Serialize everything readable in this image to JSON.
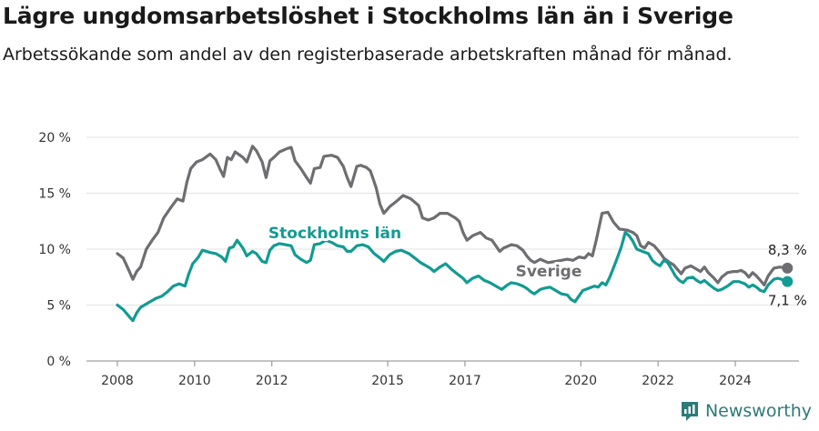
{
  "header": {
    "title": "Lägre ungdomsarbetslöshet i Stockholms län än i Sverige",
    "subtitle": "Arbetssökande som andel av den registerbaserade arbetskraften månad för månad."
  },
  "brand": {
    "name": "Newsworthy",
    "icon": "newsworthy-logo-icon",
    "color": "#2d7a78"
  },
  "chart_data": {
    "type": "line",
    "ylim": [
      0,
      20
    ],
    "yticks": [
      0,
      5,
      10,
      15,
      20
    ],
    "ytick_labels": [
      "0 %",
      "5 %",
      "10 %",
      "15 %",
      "20 %"
    ],
    "xticks": [
      2008,
      2010,
      2012,
      2015,
      2017,
      2020,
      2022,
      2024
    ],
    "xtick_labels": [
      "2008",
      "2010",
      "2012",
      "2015",
      "2017",
      "2020",
      "2022",
      "2024"
    ],
    "grid": true,
    "series": [
      {
        "name": "Sverige",
        "color": "#6e6e72",
        "end_label": "8,3 %",
        "points": [
          [
            2008.0,
            9.6
          ],
          [
            2008.15,
            9.2
          ],
          [
            2008.3,
            8.1
          ],
          [
            2008.4,
            7.3
          ],
          [
            2008.5,
            8.0
          ],
          [
            2008.6,
            8.4
          ],
          [
            2008.75,
            10.0
          ],
          [
            2008.9,
            10.8
          ],
          [
            2009.05,
            11.5
          ],
          [
            2009.2,
            12.8
          ],
          [
            2009.4,
            13.8
          ],
          [
            2009.55,
            14.5
          ],
          [
            2009.7,
            14.3
          ],
          [
            2009.8,
            16.0
          ],
          [
            2009.9,
            17.2
          ],
          [
            2010.05,
            17.8
          ],
          [
            2010.2,
            18.0
          ],
          [
            2010.4,
            18.5
          ],
          [
            2010.55,
            18.0
          ],
          [
            2010.65,
            17.2
          ],
          [
            2010.75,
            16.5
          ],
          [
            2010.85,
            18.2
          ],
          [
            2010.95,
            18.0
          ],
          [
            2011.05,
            18.7
          ],
          [
            2011.25,
            18.2
          ],
          [
            2011.35,
            17.8
          ],
          [
            2011.5,
            19.2
          ],
          [
            2011.6,
            18.8
          ],
          [
            2011.75,
            17.8
          ],
          [
            2011.85,
            16.4
          ],
          [
            2011.95,
            17.9
          ],
          [
            2012.05,
            18.2
          ],
          [
            2012.2,
            18.7
          ],
          [
            2012.4,
            19.0
          ],
          [
            2012.5,
            19.1
          ],
          [
            2012.6,
            17.9
          ],
          [
            2012.75,
            17.2
          ],
          [
            2012.9,
            16.4
          ],
          [
            2013.0,
            15.9
          ],
          [
            2013.1,
            17.2
          ],
          [
            2013.25,
            17.3
          ],
          [
            2013.35,
            18.3
          ],
          [
            2013.55,
            18.4
          ],
          [
            2013.7,
            18.2
          ],
          [
            2013.85,
            17.4
          ],
          [
            2013.95,
            16.4
          ],
          [
            2014.05,
            15.6
          ],
          [
            2014.2,
            17.4
          ],
          [
            2014.3,
            17.5
          ],
          [
            2014.45,
            17.3
          ],
          [
            2014.55,
            17.0
          ],
          [
            2014.7,
            15.5
          ],
          [
            2014.8,
            14.0
          ],
          [
            2014.9,
            13.2
          ],
          [
            2015.05,
            13.8
          ],
          [
            2015.2,
            14.2
          ],
          [
            2015.4,
            14.8
          ],
          [
            2015.6,
            14.5
          ],
          [
            2015.8,
            13.9
          ],
          [
            2015.9,
            12.8
          ],
          [
            2016.05,
            12.6
          ],
          [
            2016.2,
            12.8
          ],
          [
            2016.35,
            13.2
          ],
          [
            2016.55,
            13.2
          ],
          [
            2016.75,
            12.8
          ],
          [
            2016.85,
            12.5
          ],
          [
            2016.95,
            11.5
          ],
          [
            2017.05,
            10.8
          ],
          [
            2017.2,
            11.2
          ],
          [
            2017.4,
            11.5
          ],
          [
            2017.55,
            11.0
          ],
          [
            2017.7,
            10.8
          ],
          [
            2017.8,
            10.3
          ],
          [
            2017.9,
            9.8
          ],
          [
            2018.0,
            10.1
          ],
          [
            2018.2,
            10.4
          ],
          [
            2018.35,
            10.3
          ],
          [
            2018.5,
            9.9
          ],
          [
            2018.6,
            9.4
          ],
          [
            2018.7,
            9.0
          ],
          [
            2018.8,
            8.8
          ],
          [
            2018.95,
            9.1
          ],
          [
            2019.15,
            8.8
          ],
          [
            2019.35,
            8.9
          ],
          [
            2019.5,
            9.0
          ],
          [
            2019.65,
            9.1
          ],
          [
            2019.8,
            9.0
          ],
          [
            2019.95,
            9.3
          ],
          [
            2020.1,
            9.2
          ],
          [
            2020.2,
            9.6
          ],
          [
            2020.3,
            9.4
          ],
          [
            2020.4,
            10.8
          ],
          [
            2020.55,
            13.2
          ],
          [
            2020.7,
            13.3
          ],
          [
            2020.85,
            12.4
          ],
          [
            2021.0,
            11.8
          ],
          [
            2021.2,
            11.7
          ],
          [
            2021.35,
            11.5
          ],
          [
            2021.45,
            11.2
          ],
          [
            2021.55,
            10.3
          ],
          [
            2021.65,
            10.1
          ],
          [
            2021.75,
            10.6
          ],
          [
            2021.9,
            10.3
          ],
          [
            2022.05,
            9.7
          ],
          [
            2022.15,
            9.2
          ],
          [
            2022.3,
            8.8
          ],
          [
            2022.4,
            8.6
          ],
          [
            2022.5,
            8.2
          ],
          [
            2022.6,
            7.8
          ],
          [
            2022.7,
            8.3
          ],
          [
            2022.85,
            8.5
          ],
          [
            2023.0,
            8.2
          ],
          [
            2023.1,
            8.0
          ],
          [
            2023.2,
            8.4
          ],
          [
            2023.3,
            7.9
          ],
          [
            2023.45,
            7.4
          ],
          [
            2023.55,
            7.0
          ],
          [
            2023.65,
            7.5
          ],
          [
            2023.8,
            7.9
          ],
          [
            2023.95,
            8.0
          ],
          [
            2024.05,
            8.0
          ],
          [
            2024.15,
            8.1
          ],
          [
            2024.25,
            7.9
          ],
          [
            2024.35,
            7.5
          ],
          [
            2024.45,
            7.9
          ],
          [
            2024.55,
            7.6
          ],
          [
            2024.65,
            7.2
          ],
          [
            2024.75,
            6.8
          ],
          [
            2024.85,
            7.6
          ],
          [
            2025.0,
            8.3
          ],
          [
            2025.15,
            8.4
          ],
          [
            2025.35,
            8.3
          ]
        ]
      },
      {
        "name": "Stockholms län",
        "color": "#129b92",
        "end_label": "7,1 %",
        "points": [
          [
            2008.0,
            5.0
          ],
          [
            2008.15,
            4.6
          ],
          [
            2008.3,
            4.0
          ],
          [
            2008.4,
            3.6
          ],
          [
            2008.5,
            4.3
          ],
          [
            2008.6,
            4.8
          ],
          [
            2008.8,
            5.2
          ],
          [
            2009.0,
            5.6
          ],
          [
            2009.15,
            5.8
          ],
          [
            2009.3,
            6.2
          ],
          [
            2009.45,
            6.7
          ],
          [
            2009.6,
            6.9
          ],
          [
            2009.75,
            6.7
          ],
          [
            2009.85,
            7.8
          ],
          [
            2009.95,
            8.7
          ],
          [
            2010.1,
            9.3
          ],
          [
            2010.2,
            9.9
          ],
          [
            2010.4,
            9.7
          ],
          [
            2010.55,
            9.6
          ],
          [
            2010.7,
            9.3
          ],
          [
            2010.8,
            8.9
          ],
          [
            2010.9,
            10.1
          ],
          [
            2011.0,
            10.2
          ],
          [
            2011.1,
            10.8
          ],
          [
            2011.25,
            10.1
          ],
          [
            2011.35,
            9.4
          ],
          [
            2011.5,
            9.8
          ],
          [
            2011.6,
            9.6
          ],
          [
            2011.75,
            8.9
          ],
          [
            2011.85,
            8.8
          ],
          [
            2011.95,
            9.9
          ],
          [
            2012.05,
            10.3
          ],
          [
            2012.2,
            10.5
          ],
          [
            2012.35,
            10.4
          ],
          [
            2012.5,
            10.3
          ],
          [
            2012.6,
            9.5
          ],
          [
            2012.75,
            9.1
          ],
          [
            2012.9,
            8.8
          ],
          [
            2013.0,
            9.0
          ],
          [
            2013.1,
            10.4
          ],
          [
            2013.25,
            10.5
          ],
          [
            2013.4,
            10.8
          ],
          [
            2013.55,
            10.6
          ],
          [
            2013.7,
            10.3
          ],
          [
            2013.85,
            10.2
          ],
          [
            2013.95,
            9.8
          ],
          [
            2014.05,
            9.8
          ],
          [
            2014.2,
            10.3
          ],
          [
            2014.35,
            10.4
          ],
          [
            2014.5,
            10.2
          ],
          [
            2014.65,
            9.6
          ],
          [
            2014.8,
            9.2
          ],
          [
            2014.9,
            8.9
          ],
          [
            2015.05,
            9.5
          ],
          [
            2015.2,
            9.8
          ],
          [
            2015.35,
            9.9
          ],
          [
            2015.55,
            9.6
          ],
          [
            2015.7,
            9.2
          ],
          [
            2015.85,
            8.8
          ],
          [
            2015.95,
            8.6
          ],
          [
            2016.1,
            8.3
          ],
          [
            2016.2,
            8.0
          ],
          [
            2016.35,
            8.4
          ],
          [
            2016.5,
            8.7
          ],
          [
            2016.65,
            8.2
          ],
          [
            2016.8,
            7.8
          ],
          [
            2016.95,
            7.4
          ],
          [
            2017.05,
            7.0
          ],
          [
            2017.2,
            7.4
          ],
          [
            2017.35,
            7.6
          ],
          [
            2017.5,
            7.2
          ],
          [
            2017.65,
            7.0
          ],
          [
            2017.8,
            6.7
          ],
          [
            2017.95,
            6.4
          ],
          [
            2018.1,
            6.8
          ],
          [
            2018.2,
            7.0
          ],
          [
            2018.35,
            6.9
          ],
          [
            2018.5,
            6.7
          ],
          [
            2018.6,
            6.5
          ],
          [
            2018.7,
            6.2
          ],
          [
            2018.8,
            6.0
          ],
          [
            2018.95,
            6.4
          ],
          [
            2019.05,
            6.5
          ],
          [
            2019.2,
            6.6
          ],
          [
            2019.35,
            6.3
          ],
          [
            2019.5,
            6.0
          ],
          [
            2019.65,
            5.9
          ],
          [
            2019.75,
            5.5
          ],
          [
            2019.85,
            5.3
          ],
          [
            2019.95,
            5.8
          ],
          [
            2020.05,
            6.3
          ],
          [
            2020.2,
            6.5
          ],
          [
            2020.35,
            6.7
          ],
          [
            2020.45,
            6.6
          ],
          [
            2020.55,
            7.0
          ],
          [
            2020.65,
            6.8
          ],
          [
            2020.75,
            7.5
          ],
          [
            2020.9,
            8.8
          ],
          [
            2021.05,
            10.2
          ],
          [
            2021.15,
            11.5
          ],
          [
            2021.25,
            11.2
          ],
          [
            2021.35,
            10.7
          ],
          [
            2021.45,
            10.0
          ],
          [
            2021.6,
            9.8
          ],
          [
            2021.75,
            9.6
          ],
          [
            2021.85,
            9.0
          ],
          [
            2021.95,
            8.7
          ],
          [
            2022.05,
            8.5
          ],
          [
            2022.15,
            9.0
          ],
          [
            2022.25,
            8.8
          ],
          [
            2022.35,
            8.2
          ],
          [
            2022.45,
            7.6
          ],
          [
            2022.55,
            7.2
          ],
          [
            2022.65,
            7.0
          ],
          [
            2022.75,
            7.4
          ],
          [
            2022.9,
            7.5
          ],
          [
            2023.0,
            7.2
          ],
          [
            2023.1,
            7.0
          ],
          [
            2023.2,
            7.2
          ],
          [
            2023.3,
            6.9
          ],
          [
            2023.45,
            6.5
          ],
          [
            2023.55,
            6.3
          ],
          [
            2023.65,
            6.4
          ],
          [
            2023.8,
            6.7
          ],
          [
            2023.95,
            7.1
          ],
          [
            2024.1,
            7.1
          ],
          [
            2024.25,
            6.9
          ],
          [
            2024.35,
            6.6
          ],
          [
            2024.45,
            6.8
          ],
          [
            2024.55,
            6.6
          ],
          [
            2024.65,
            6.3
          ],
          [
            2024.75,
            6.2
          ],
          [
            2024.85,
            6.8
          ],
          [
            2025.0,
            7.3
          ],
          [
            2025.1,
            7.4
          ],
          [
            2025.2,
            7.3
          ],
          [
            2025.35,
            7.1
          ]
        ]
      }
    ]
  }
}
